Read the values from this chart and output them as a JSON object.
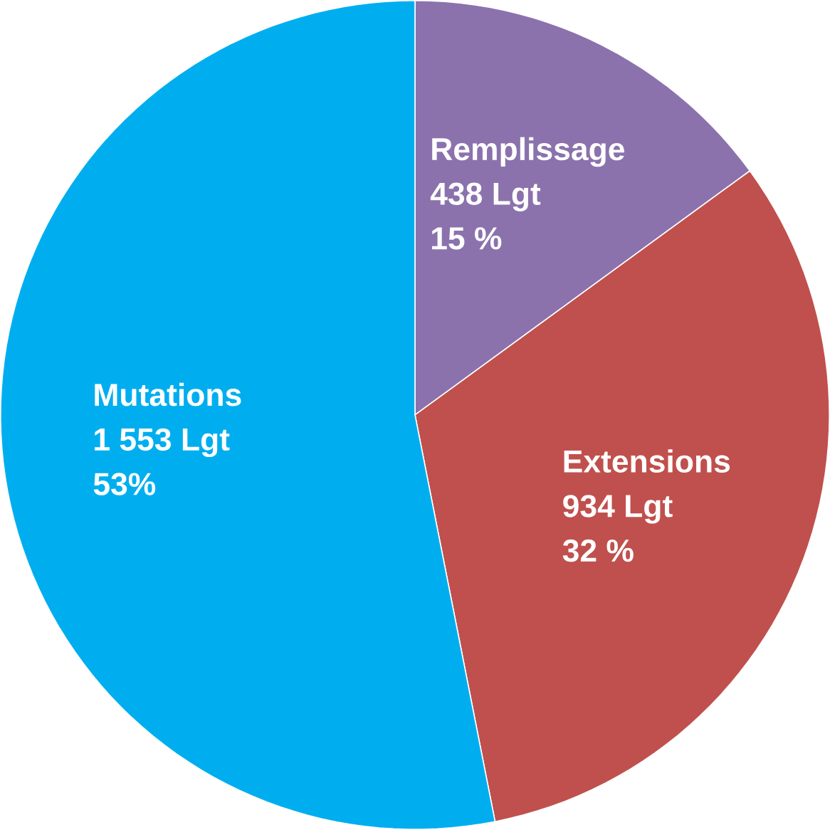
{
  "chart_data": {
    "type": "pie",
    "categories": [
      "Remplissage",
      "Extensions",
      "Mutations"
    ],
    "values": [
      438,
      934,
      1553
    ],
    "colors": [
      "#8b72ad",
      "#c0504d",
      "#00aeef"
    ],
    "value_labels": [
      "438 Lgt",
      "934 Lgt",
      "1 553 Lgt"
    ],
    "annotations": [
      "15 %",
      "32 %",
      "53%"
    ]
  }
}
